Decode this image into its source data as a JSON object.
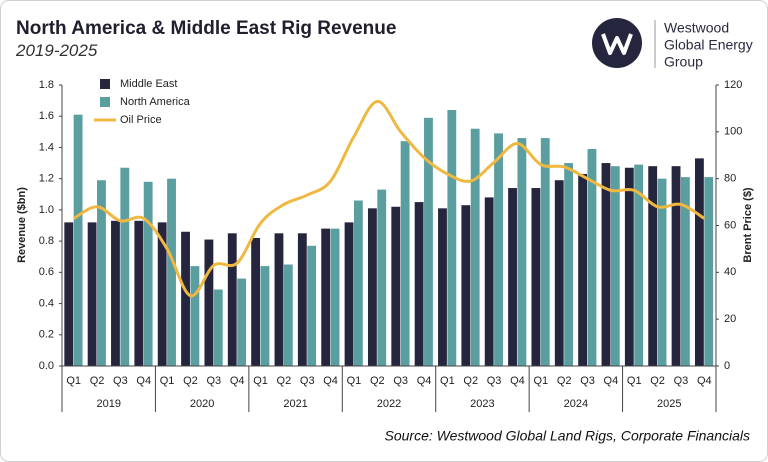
{
  "logo": {
    "lines": [
      "Westwood",
      "Global Energy",
      "Group"
    ]
  },
  "chart_data": {
    "type": "bar-line",
    "title": "North America & Middle East Rig Revenue",
    "subtitle": "2019-2025",
    "ylabel": "Revenue ($bn)",
    "y2label": "Brent Price ($)",
    "source": "Source: Westwood Global Land Rigs, Corporate Financials",
    "categories": [
      "Q1",
      "Q2",
      "Q3",
      "Q4",
      "Q1",
      "Q2",
      "Q3",
      "Q4",
      "Q1",
      "Q2",
      "Q3",
      "Q4",
      "Q1",
      "Q2",
      "Q3",
      "Q4",
      "Q1",
      "Q2",
      "Q3",
      "Q4",
      "Q1",
      "Q2",
      "Q3",
      "Q4",
      "Q1",
      "Q2",
      "Q3",
      "Q4"
    ],
    "years": [
      "2019",
      "2020",
      "2021",
      "2022",
      "2023",
      "2024",
      "2025"
    ],
    "series": [
      {
        "name": "Middle East",
        "color": "#25253e",
        "kind": "bar",
        "values": [
          0.92,
          0.92,
          0.93,
          0.93,
          0.92,
          0.86,
          0.81,
          0.85,
          0.82,
          0.85,
          0.85,
          0.88,
          0.92,
          1.01,
          1.02,
          1.05,
          1.01,
          1.03,
          1.08,
          1.14,
          1.14,
          1.19,
          1.23,
          1.3,
          1.27,
          1.28,
          1.28,
          1.33
        ]
      },
      {
        "name": "North America",
        "color": "#5b9ea0",
        "kind": "bar",
        "values": [
          1.61,
          1.19,
          1.27,
          1.18,
          1.2,
          0.64,
          0.49,
          0.56,
          0.64,
          0.65,
          0.77,
          0.88,
          1.06,
          1.13,
          1.44,
          1.59,
          1.64,
          1.52,
          1.49,
          1.46,
          1.46,
          1.3,
          1.39,
          1.28,
          1.29,
          1.2,
          1.21,
          1.21
        ]
      },
      {
        "name": "Oil Price",
        "color": "#f0b840",
        "kind": "line",
        "axis": "y2",
        "values": [
          63,
          68,
          62,
          63,
          50,
          30,
          43,
          44,
          61,
          69,
          73,
          79,
          98,
          113,
          100,
          89,
          82,
          79,
          87,
          95,
          86,
          85,
          80,
          75,
          75,
          68,
          69,
          63
        ]
      }
    ],
    "ylim": [
      0,
      1.8
    ],
    "yticks": [
      {
        "value": 0,
        "label": "0.0"
      },
      0.2,
      0.4,
      0.6,
      0.8,
      {
        "value": 1,
        "label": "1.0"
      },
      1.2,
      1.4,
      1.6,
      1.8
    ],
    "y2lim": [
      0,
      120
    ],
    "y2ticks": [
      0,
      20,
      40,
      60,
      80,
      100,
      120
    ],
    "grid": false,
    "legend": "top-left"
  }
}
